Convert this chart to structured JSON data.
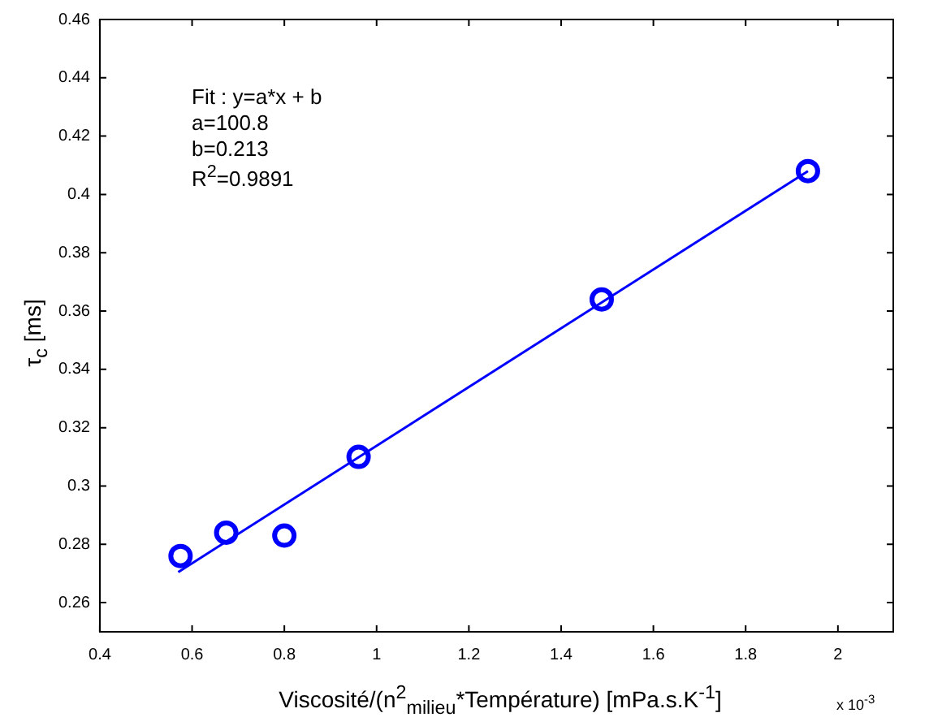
{
  "chart_data": {
    "type": "scatter",
    "xlabel": "Viscosité/(n$^{2}$$_{milieu}$*Température) [mPa.s.K$^{-1}$]",
    "ylabel": "τ$_{c}$ [ms]",
    "annotations": [
      "Fit : y=a*x + b",
      "a=100.8",
      "b=0.213",
      "R$^{2}$=0.9891",
      "x 10$^{-3}$"
    ],
    "xlim": [
      0.4,
      2.12
    ],
    "xticks": [
      0.4,
      0.6,
      0.8,
      1,
      1.2,
      1.4,
      1.6,
      1.8,
      2
    ],
    "ylim": [
      0.25,
      0.46
    ],
    "yticks": [
      0.26,
      0.28,
      0.3,
      0.32,
      0.34,
      0.36,
      0.38,
      0.4,
      0.42,
      0.44,
      0.46
    ],
    "grid": false,
    "legend": false,
    "marker": "circle",
    "series": [
      {
        "type": "scatter",
        "color": "#0000ff",
        "x": [
          0.575,
          0.674,
          0.8,
          0.961,
          1.488,
          1.935
        ],
        "values": [
          0.276,
          0.284,
          0.283,
          0.31,
          0.364,
          0.408
        ]
      },
      {
        "type": "line",
        "color": "#0000ff",
        "marker": "none",
        "line_style": "solid",
        "x": [
          0.57,
          1.935
        ],
        "values": [
          0.2705,
          0.408
        ]
      }
    ]
  }
}
